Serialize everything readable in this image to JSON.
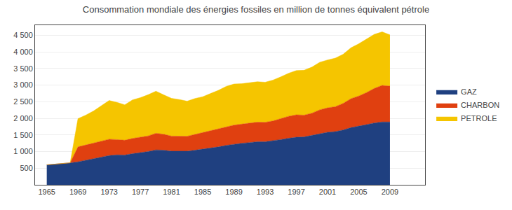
{
  "chart_data": {
    "type": "area",
    "title": "Consommation mondiale des énergies fossiles en million de tonnes équivalent pétrole",
    "x": [
      1965,
      1966,
      1967,
      1968,
      1969,
      1970,
      1971,
      1972,
      1973,
      1974,
      1975,
      1976,
      1977,
      1978,
      1979,
      1980,
      1981,
      1982,
      1983,
      1984,
      1985,
      1986,
      1987,
      1988,
      1989,
      1990,
      1991,
      1992,
      1993,
      1994,
      1995,
      1996,
      1997,
      1998,
      1999,
      2000,
      2001,
      2002,
      2003,
      2004,
      2005,
      2006,
      2007,
      2008,
      2009
    ],
    "series": [
      {
        "name": "GAZ",
        "color": "#1F4080",
        "values": [
          600,
          615,
          635,
          660,
          690,
          735,
          780,
          830,
          880,
          900,
          895,
          935,
          965,
          1000,
          1050,
          1040,
          1010,
          1005,
          1010,
          1040,
          1070,
          1100,
          1140,
          1185,
          1220,
          1250,
          1270,
          1295,
          1295,
          1320,
          1360,
          1400,
          1430,
          1440,
          1490,
          1545,
          1580,
          1600,
          1650,
          1720,
          1760,
          1810,
          1860,
          1890,
          1890
        ]
      },
      {
        "name": "CHARBON",
        "color": "#E04010",
        "values": [
          0,
          0,
          0,
          0,
          450,
          460,
          465,
          475,
          490,
          460,
          445,
          460,
          465,
          470,
          500,
          480,
          455,
          450,
          450,
          475,
          500,
          525,
          545,
          565,
          575,
          575,
          580,
          590,
          585,
          600,
          630,
          660,
          675,
          655,
          665,
          710,
          735,
          750,
          800,
          870,
          910,
          965,
          1040,
          1100,
          1080
        ]
      },
      {
        "name": "PETROLE",
        "color": "#F5C500",
        "values": [
          0,
          0,
          0,
          0,
          850,
          900,
          975,
          1075,
          1165,
          1120,
          1065,
          1160,
          1190,
          1240,
          1265,
          1185,
          1135,
          1110,
          1055,
          1080,
          1080,
          1120,
          1155,
          1210,
          1235,
          1215,
          1215,
          1215,
          1205,
          1230,
          1255,
          1295,
          1330,
          1350,
          1385,
          1430,
          1440,
          1460,
          1475,
          1530,
          1570,
          1600,
          1625,
          1610,
          1540
        ]
      }
    ],
    "stacked": true,
    "xlim": [
      1963.5,
      2013.5
    ],
    "xticks": [
      1965,
      1969,
      1973,
      1977,
      1981,
      1985,
      1989,
      1993,
      1997,
      2001,
      2005,
      2009
    ],
    "ylim": [
      0,
      4800
    ],
    "yticks": [
      500,
      {
        "value": 1000,
        "label": "1 000"
      },
      {
        "value": 1500,
        "label": "1 500"
      },
      {
        "value": 2000,
        "label": "2 000"
      },
      {
        "value": 2500,
        "label": "2 500"
      },
      {
        "value": 3000,
        "label": "3 000"
      },
      {
        "value": 3500,
        "label": "3 500"
      },
      {
        "value": 4000,
        "label": "4 000"
      },
      {
        "value": 4500,
        "label": "4 500"
      }
    ],
    "grid": true,
    "legend": "right"
  }
}
